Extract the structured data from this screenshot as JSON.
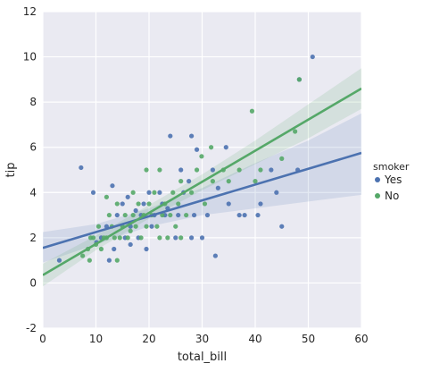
{
  "chart_data": {
    "type": "scatter",
    "xlabel": "total_bill",
    "ylabel": "tip",
    "xlim": [
      0,
      60
    ],
    "ylim": [
      -2,
      12
    ],
    "x_ticks": [
      0,
      10,
      20,
      30,
      40,
      50,
      60
    ],
    "y_ticks": [
      -2,
      0,
      2,
      4,
      6,
      8,
      10,
      12
    ],
    "grid": true,
    "legend": {
      "title": "smoker",
      "placement": "right"
    },
    "series": [
      {
        "name": "Yes",
        "color": "#4c72b0",
        "band_color": "#4c72b0",
        "regression": {
          "x0": 0,
          "y0": 1.55,
          "x1": 60,
          "y1": 5.75
        },
        "ci": {
          "upper": [
            [
              0,
              2.25
            ],
            [
              10,
              2.6
            ],
            [
              20,
              3.3
            ],
            [
              30,
              4.2
            ],
            [
              40,
              5.3
            ],
            [
              50,
              6.3
            ],
            [
              60,
              7.5
            ]
          ],
          "lower": [
            [
              0,
              0.9
            ],
            [
              10,
              1.7
            ],
            [
              20,
              2.5
            ],
            [
              30,
              3.0
            ],
            [
              40,
              3.3
            ],
            [
              50,
              3.6
            ],
            [
              60,
              3.9
            ]
          ]
        },
        "points": [
          [
            50.8,
            10.0
          ],
          [
            48.3,
            9.0
          ],
          [
            7.2,
            5.1
          ],
          [
            9.5,
            4.0
          ],
          [
            13.1,
            4.3
          ],
          [
            3.1,
            1.0
          ],
          [
            10.1,
            1.8
          ],
          [
            12.0,
            2.5
          ],
          [
            13.4,
            1.5
          ],
          [
            14.0,
            3.0
          ],
          [
            15.0,
            3.5
          ],
          [
            15.5,
            2.0
          ],
          [
            16.0,
            3.8
          ],
          [
            16.5,
            2.5
          ],
          [
            17.5,
            3.2
          ],
          [
            18.0,
            2.0
          ],
          [
            18.5,
            3.0
          ],
          [
            19.0,
            3.5
          ],
          [
            19.5,
            1.5
          ],
          [
            20.0,
            4.0
          ],
          [
            20.5,
            2.5
          ],
          [
            21.0,
            3.0
          ],
          [
            22.0,
            4.0
          ],
          [
            22.5,
            3.5
          ],
          [
            23.5,
            3.3
          ],
          [
            24.0,
            6.5
          ],
          [
            25.0,
            2.0
          ],
          [
            25.5,
            3.0
          ],
          [
            26.0,
            5.0
          ],
          [
            27.5,
            4.5
          ],
          [
            28.0,
            6.5
          ],
          [
            28.5,
            3.0
          ],
          [
            29.0,
            5.9
          ],
          [
            30.0,
            2.0
          ],
          [
            31.0,
            3.0
          ],
          [
            32.5,
            1.2
          ],
          [
            32.0,
            5.0
          ],
          [
            34.5,
            6.0
          ],
          [
            35.0,
            3.5
          ],
          [
            37.0,
            3.0
          ],
          [
            38.0,
            3.0
          ],
          [
            40.5,
            3.0
          ],
          [
            45.0,
            2.5
          ],
          [
            43.0,
            5.0
          ],
          [
            44.0,
            4.0
          ],
          [
            48.0,
            5.0
          ],
          [
            11.0,
            2.0
          ],
          [
            12.5,
            1.0
          ],
          [
            16.5,
            1.7
          ],
          [
            23.0,
            3.0
          ],
          [
            26.5,
            4.0
          ],
          [
            28.0,
            2.0
          ],
          [
            33.0,
            4.2
          ],
          [
            41.0,
            3.5
          ]
        ]
      },
      {
        "name": "No",
        "color": "#55a868",
        "band_color": "#55a868",
        "regression": {
          "x0": 0,
          "y0": 0.35,
          "x1": 60,
          "y1": 8.6
        },
        "ci": {
          "upper": [
            [
              0,
              0.85
            ],
            [
              10,
              2.1
            ],
            [
              20,
              3.45
            ],
            [
              30,
              4.8
            ],
            [
              40,
              6.3
            ],
            [
              50,
              7.9
            ],
            [
              60,
              9.5
            ]
          ],
          "lower": [
            [
              0,
              -0.15
            ],
            [
              10,
              1.45
            ],
            [
              20,
              2.85
            ],
            [
              30,
              4.1
            ],
            [
              40,
              5.25
            ],
            [
              50,
              6.4
            ],
            [
              60,
              7.7
            ]
          ]
        },
        "points": [
          [
            48.3,
            9.0
          ],
          [
            39.4,
            7.6
          ],
          [
            47.5,
            6.7
          ],
          [
            31.7,
            6.0
          ],
          [
            29.9,
            5.6
          ],
          [
            8.5,
            1.5
          ],
          [
            8.8,
            1.0
          ],
          [
            9.5,
            2.0
          ],
          [
            10.0,
            1.7
          ],
          [
            10.5,
            2.5
          ],
          [
            11.0,
            1.5
          ],
          [
            11.5,
            2.0
          ],
          [
            12.0,
            2.0
          ],
          [
            12.5,
            3.0
          ],
          [
            13.0,
            2.5
          ],
          [
            13.5,
            2.0
          ],
          [
            14.0,
            3.5
          ],
          [
            14.5,
            2.0
          ],
          [
            15.0,
            2.5
          ],
          [
            15.5,
            3.0
          ],
          [
            16.0,
            2.0
          ],
          [
            16.5,
            2.3
          ],
          [
            17.0,
            3.0
          ],
          [
            17.5,
            2.5
          ],
          [
            18.0,
            3.5
          ],
          [
            18.5,
            2.0
          ],
          [
            19.0,
            3.0
          ],
          [
            19.5,
            2.5
          ],
          [
            20.0,
            3.5
          ],
          [
            20.5,
            3.0
          ],
          [
            21.0,
            4.0
          ],
          [
            21.5,
            2.5
          ],
          [
            22.0,
            5.0
          ],
          [
            22.5,
            3.0
          ],
          [
            23.0,
            3.5
          ],
          [
            23.5,
            2.0
          ],
          [
            24.0,
            3.0
          ],
          [
            24.5,
            4.0
          ],
          [
            25.0,
            2.5
          ],
          [
            25.5,
            3.5
          ],
          [
            26.0,
            4.5
          ],
          [
            27.0,
            3.0
          ],
          [
            28.0,
            4.0
          ],
          [
            29.0,
            5.0
          ],
          [
            30.5,
            3.5
          ],
          [
            32.0,
            4.5
          ],
          [
            34.0,
            5.0
          ],
          [
            35.0,
            4.5
          ],
          [
            37.0,
            5.0
          ],
          [
            40.0,
            4.5
          ],
          [
            41.0,
            5.0
          ],
          [
            45.0,
            5.5
          ],
          [
            12.0,
            3.8
          ],
          [
            17.0,
            4.0
          ],
          [
            19.5,
            5.0
          ],
          [
            22.0,
            2.0
          ],
          [
            26.0,
            2.0
          ],
          [
            14.0,
            1.0
          ],
          [
            9.0,
            2.0
          ],
          [
            7.5,
            1.2
          ]
        ]
      }
    ]
  }
}
